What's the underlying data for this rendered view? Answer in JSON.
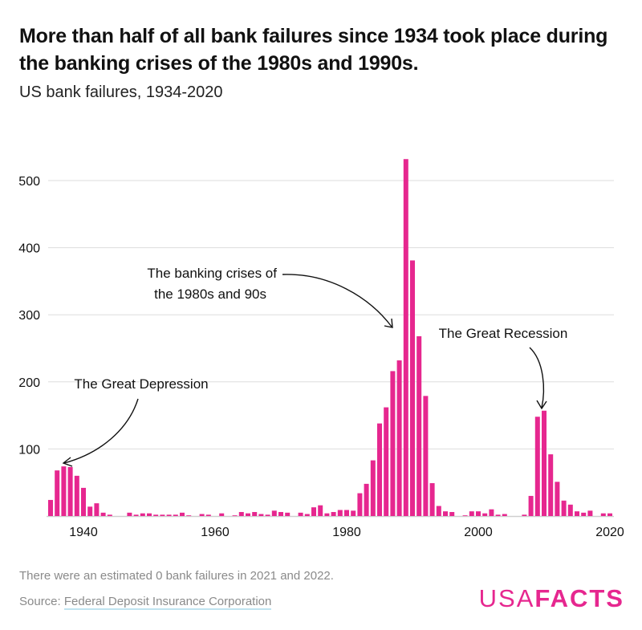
{
  "title": "More than half of all bank failures since 1934 took place during the banking crises of the 1980s and 1990s.",
  "subtitle": "US bank failures, 1934-2020",
  "note": "There were an estimated 0 bank failures in 2021 and 2022.",
  "source_label": "Source: ",
  "source_link": "Federal Deposit Insurance Corporation",
  "logo": {
    "part1": "USA",
    "part2": "FACTS"
  },
  "colors": {
    "bar": "#e6278f",
    "grid": "#dddddd",
    "logo": "#e6278f"
  },
  "chart_data": {
    "type": "bar",
    "title": "",
    "xlabel": "",
    "ylabel": "",
    "ylim": [
      0,
      540
    ],
    "grid": true,
    "yticks": [
      100,
      200,
      300,
      400,
      500
    ],
    "xticks": [
      1940,
      1960,
      1980,
      2000,
      2020
    ],
    "x": [
      1935,
      1936,
      1937,
      1938,
      1939,
      1940,
      1941,
      1942,
      1943,
      1944,
      1945,
      1946,
      1947,
      1948,
      1949,
      1950,
      1951,
      1952,
      1953,
      1954,
      1955,
      1956,
      1957,
      1958,
      1959,
      1960,
      1961,
      1962,
      1963,
      1964,
      1965,
      1966,
      1967,
      1968,
      1969,
      1970,
      1971,
      1972,
      1973,
      1974,
      1975,
      1976,
      1977,
      1978,
      1979,
      1980,
      1981,
      1982,
      1983,
      1984,
      1985,
      1986,
      1987,
      1988,
      1989,
      1990,
      1991,
      1992,
      1993,
      1994,
      1995,
      1996,
      1997,
      1998,
      1999,
      2000,
      2001,
      2002,
      2003,
      2004,
      2005,
      2006,
      2007,
      2008,
      2009,
      2010,
      2011,
      2012,
      2013,
      2014,
      2015,
      2016,
      2017,
      2018,
      2019,
      2020
    ],
    "values": [
      24,
      68,
      74,
      73,
      60,
      42,
      14,
      19,
      5,
      2,
      0,
      0,
      5,
      2,
      4,
      4,
      2,
      2,
      2,
      2,
      5,
      1,
      0,
      3,
      2,
      0,
      4,
      0,
      1,
      6,
      4,
      6,
      3,
      2,
      8,
      6,
      5,
      0,
      5,
      3,
      13,
      16,
      4,
      6,
      9,
      9,
      8,
      34,
      48,
      83,
      138,
      162,
      216,
      232,
      532,
      381,
      268,
      179,
      49,
      15,
      7,
      6,
      0,
      1,
      7,
      7,
      4,
      10,
      2,
      3,
      0,
      0,
      2,
      30,
      148,
      157,
      92,
      51,
      23,
      17,
      7,
      5,
      8,
      0,
      4,
      4
    ],
    "annotations": [
      {
        "text": "The Great Depression",
        "target_year": 1937
      },
      {
        "text_lines": [
          "The banking crises of",
          "the 1980s and 90s"
        ],
        "target_year": 1988
      },
      {
        "text": "The Great Recession",
        "target_year": 2010
      }
    ]
  }
}
